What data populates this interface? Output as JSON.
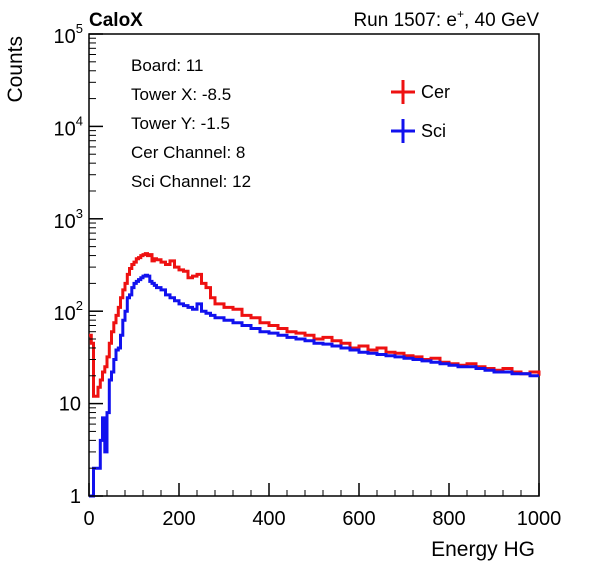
{
  "chart_data": {
    "type": "line",
    "title_left": "CaloX",
    "title_right_prefix": "Run 1507: e",
    "title_right_sup": "+",
    "title_right_suffix": ", 40 GeV",
    "xlabel": "Energy HG",
    "ylabel": "Counts",
    "xlim": [
      0,
      1000
    ],
    "ylim": [
      1,
      100000
    ],
    "y_scale": "log",
    "grid": false,
    "x_ticks": [
      {
        "value": 0,
        "label": "0"
      },
      {
        "value": 200,
        "label": "200"
      },
      {
        "value": 400,
        "label": "400"
      },
      {
        "value": 600,
        "label": "600"
      },
      {
        "value": 800,
        "label": "800"
      },
      {
        "value": 1000,
        "label": "1000"
      }
    ],
    "y_ticks": [
      {
        "value": 1,
        "base": "1",
        "exp": ""
      },
      {
        "value": 10,
        "base": "10",
        "exp": ""
      },
      {
        "value": 100,
        "base": "10",
        "exp": "2"
      },
      {
        "value": 1000,
        "base": "10",
        "exp": "3"
      },
      {
        "value": 10000,
        "base": "10",
        "exp": "4"
      },
      {
        "value": 100000,
        "base": "10",
        "exp": "5"
      }
    ],
    "info_lines": [
      "Board: 11",
      "Tower X: -8.5",
      "Tower Y: -1.5",
      "Cer Channel: 8",
      "Sci Channel: 12"
    ],
    "legend_position": "top-right",
    "series": [
      {
        "name": "Cer",
        "color": "#ee1111",
        "x": [
          0,
          5,
          10,
          15,
          20,
          25,
          30,
          35,
          40,
          45,
          50,
          55,
          60,
          65,
          70,
          75,
          80,
          85,
          90,
          95,
          100,
          105,
          110,
          115,
          120,
          125,
          130,
          135,
          140,
          145,
          150,
          160,
          170,
          180,
          190,
          200,
          210,
          220,
          230,
          240,
          250,
          260,
          270,
          280,
          300,
          320,
          340,
          360,
          380,
          400,
          420,
          440,
          460,
          480,
          500,
          520,
          540,
          560,
          580,
          600,
          620,
          640,
          660,
          680,
          700,
          720,
          740,
          760,
          780,
          800,
          820,
          840,
          860,
          880,
          900,
          920,
          940,
          960,
          980,
          1000
        ],
        "y": [
          55,
          45,
          12,
          12,
          15,
          18,
          22,
          25,
          32,
          45,
          60,
          75,
          90,
          110,
          140,
          170,
          200,
          250,
          290,
          320,
          340,
          370,
          380,
          400,
          410,
          420,
          400,
          410,
          350,
          370,
          360,
          340,
          320,
          350,
          300,
          280,
          270,
          230,
          240,
          250,
          200,
          180,
          140,
          120,
          110,
          105,
          90,
          85,
          75,
          70,
          65,
          60,
          58,
          55,
          50,
          52,
          48,
          45,
          40,
          42,
          38,
          40,
          36,
          35,
          33,
          32,
          30,
          31,
          28,
          27,
          26,
          27,
          25,
          24,
          23,
          24,
          22,
          21,
          22,
          20
        ]
      },
      {
        "name": "Sci",
        "color": "#1111ee",
        "x": [
          0,
          5,
          10,
          15,
          20,
          25,
          30,
          35,
          40,
          45,
          50,
          55,
          60,
          65,
          70,
          75,
          80,
          85,
          90,
          95,
          100,
          105,
          110,
          115,
          120,
          125,
          130,
          135,
          140,
          145,
          150,
          160,
          170,
          180,
          190,
          200,
          210,
          220,
          230,
          240,
          250,
          260,
          270,
          280,
          300,
          320,
          340,
          360,
          380,
          400,
          420,
          440,
          460,
          480,
          500,
          520,
          540,
          560,
          580,
          600,
          620,
          640,
          660,
          680,
          700,
          720,
          740,
          760,
          780,
          800,
          820,
          840,
          860,
          880,
          900,
          920,
          940,
          960,
          980,
          1000
        ],
        "y": [
          1,
          1,
          2,
          2,
          2,
          4,
          7,
          3,
          8,
          18,
          22,
          30,
          38,
          40,
          55,
          80,
          100,
          140,
          150,
          180,
          200,
          210,
          220,
          230,
          240,
          245,
          240,
          210,
          200,
          190,
          180,
          170,
          150,
          140,
          130,
          120,
          115,
          110,
          105,
          120,
          100,
          95,
          90,
          85,
          80,
          75,
          70,
          65,
          60,
          58,
          55,
          52,
          50,
          48,
          45,
          44,
          42,
          40,
          38,
          36,
          35,
          34,
          33,
          32,
          31,
          30,
          29,
          28,
          27,
          26,
          25,
          25,
          24,
          23,
          22,
          22,
          21,
          21,
          20,
          20
        ]
      }
    ]
  }
}
